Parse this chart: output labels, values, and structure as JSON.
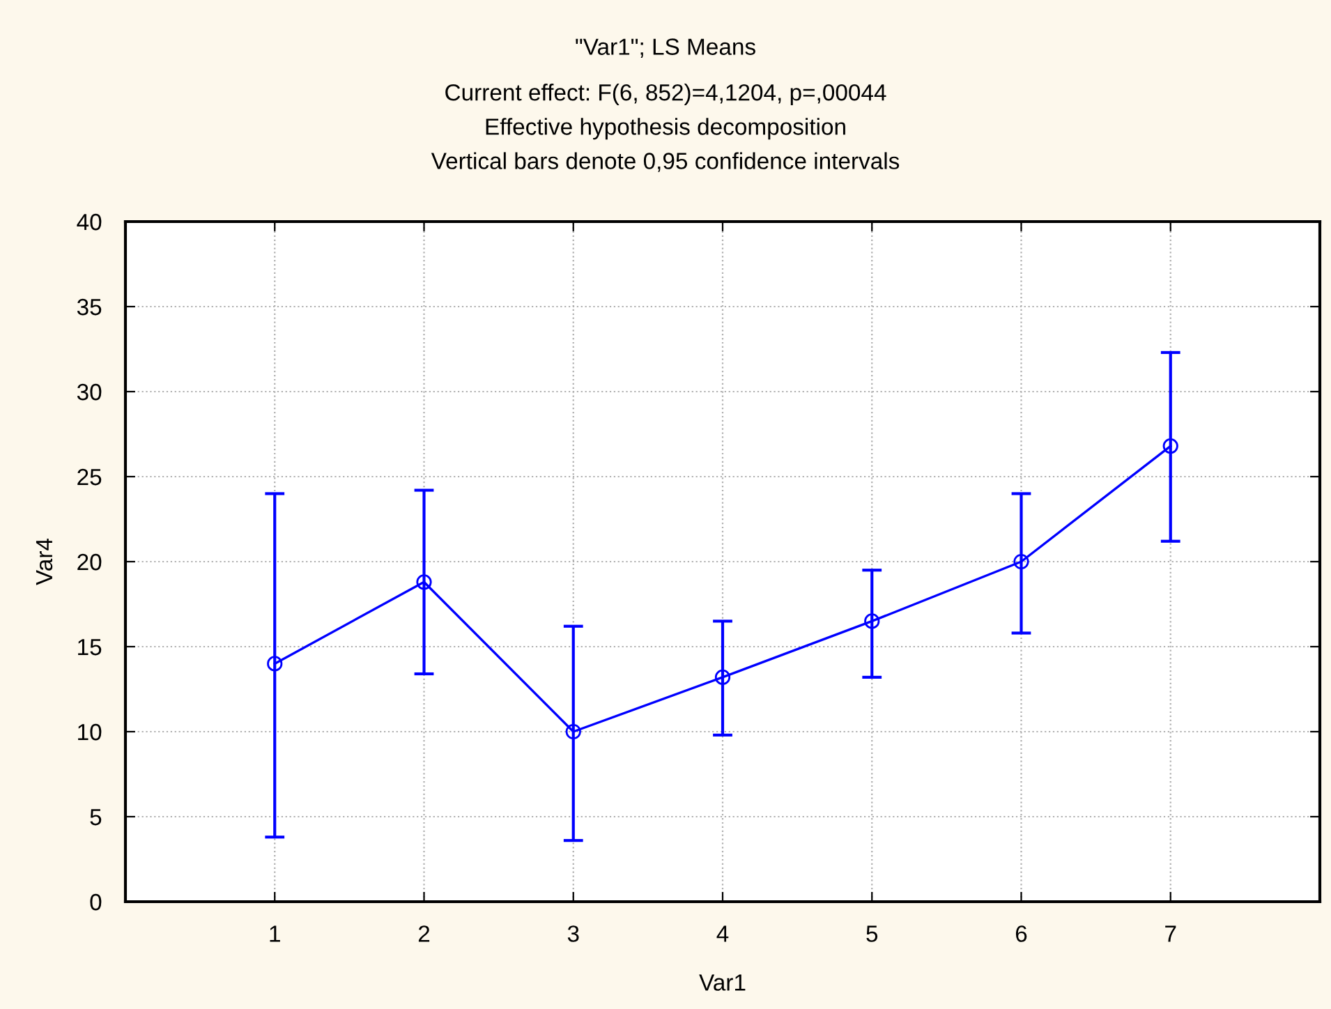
{
  "chart_data": {
    "type": "line",
    "title": "\"Var1\"; LS Means",
    "subtitle": "Current effect: F(6, 852)=4,1204, p=,00044\nEffective hypothesis decomposition\nVertical bars denote 0,95 confidence intervals",
    "xlabel": "Var1",
    "ylabel": "Var4",
    "x": [
      1,
      2,
      3,
      4,
      5,
      6,
      7
    ],
    "series": [
      {
        "color": "#0000ff",
        "values": [
          14.0,
          18.8,
          10.0,
          13.2,
          16.5,
          20.0,
          26.8
        ],
        "errors": [
          [
            3.8,
            24.0
          ],
          [
            13.4,
            24.2
          ],
          [
            3.6,
            16.2
          ],
          [
            9.8,
            16.5
          ],
          [
            13.2,
            19.5
          ],
          [
            15.8,
            24.0
          ],
          [
            21.2,
            32.3
          ]
        ]
      }
    ],
    "xlim": [
      0,
      8
    ],
    "xticks": [
      1,
      2,
      3,
      4,
      5,
      6,
      7
    ],
    "ylim": [
      0,
      40
    ],
    "yticks": [
      0,
      5,
      10,
      15,
      20,
      25,
      30,
      35,
      40
    ],
    "grid": true,
    "marker": "circle",
    "line_style": "solid"
  }
}
